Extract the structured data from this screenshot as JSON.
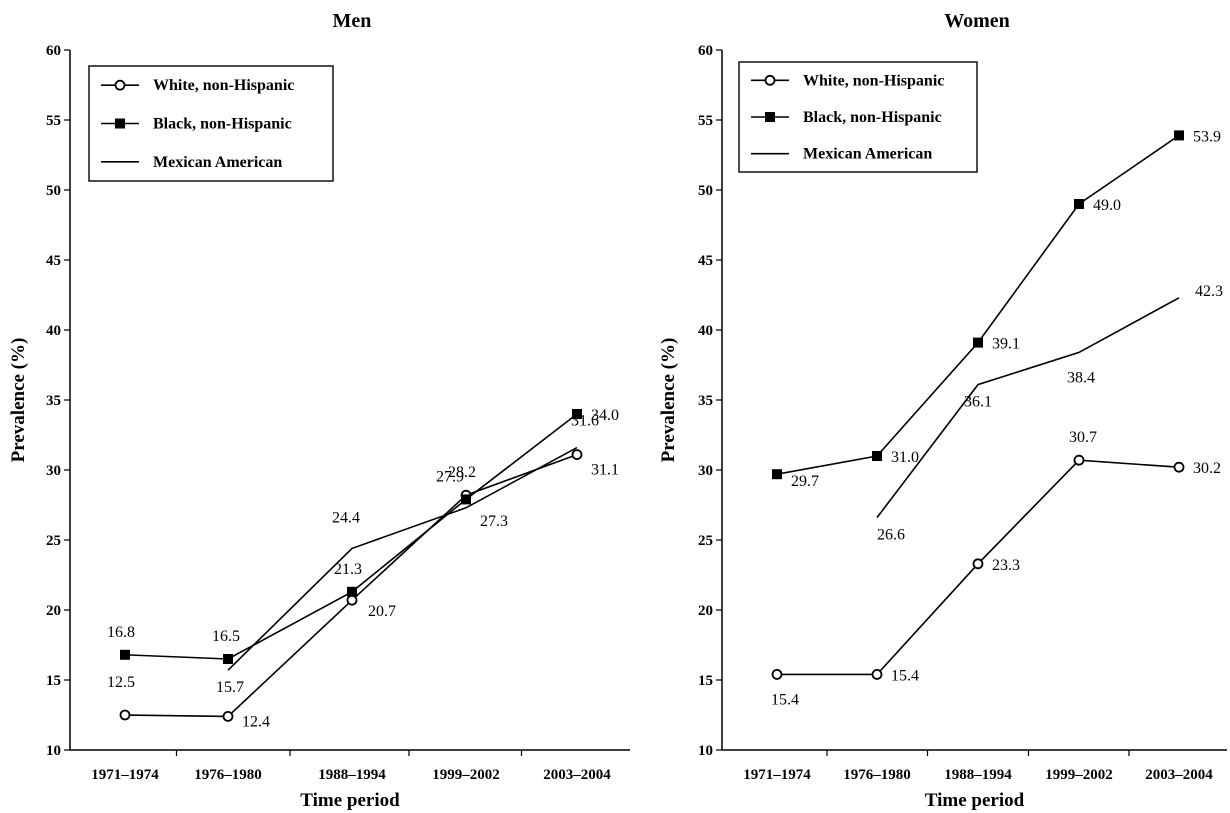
{
  "chart_data": [
    {
      "type": "line",
      "title": "Men",
      "xlabel": "Time period",
      "ylabel": "Prevalence (%)",
      "ylim": [
        10,
        60
      ],
      "yticks": [
        10,
        15,
        20,
        25,
        30,
        35,
        40,
        45,
        50,
        55,
        60
      ],
      "categories": [
        "1971–1974",
        "1976–1980",
        "1988–1994",
        "1999–2002",
        "2003–2004"
      ],
      "legend_position": "top-left",
      "series": [
        {
          "name": "White, non-Hispanic",
          "marker": "circle",
          "values": [
            12.5,
            12.4,
            20.7,
            28.2,
            31.1
          ]
        },
        {
          "name": "Black, non-Hispanic",
          "marker": "square",
          "values": [
            16.8,
            16.5,
            21.3,
            27.9,
            34.0
          ]
        },
        {
          "name": "Mexican American",
          "marker": "none",
          "values": [
            null,
            15.7,
            24.4,
            27.3,
            31.6
          ]
        }
      ]
    },
    {
      "type": "line",
      "title": "Women",
      "xlabel": "Time period",
      "ylabel": "Prevalence (%)",
      "ylim": [
        10,
        60
      ],
      "yticks": [
        10,
        15,
        20,
        25,
        30,
        35,
        40,
        45,
        50,
        55,
        60
      ],
      "categories": [
        "1971–1974",
        "1976–1980",
        "1988–1994",
        "1999–2002",
        "2003–2004"
      ],
      "legend_position": "top-left",
      "series": [
        {
          "name": "White, non-Hispanic",
          "marker": "circle",
          "values": [
            15.4,
            15.4,
            23.3,
            30.7,
            30.2
          ]
        },
        {
          "name": "Black, non-Hispanic",
          "marker": "square",
          "values": [
            29.7,
            31.0,
            39.1,
            49.0,
            53.9
          ]
        },
        {
          "name": "Mexican American",
          "marker": "none",
          "values": [
            null,
            26.6,
            36.1,
            38.4,
            42.3
          ]
        }
      ]
    }
  ]
}
